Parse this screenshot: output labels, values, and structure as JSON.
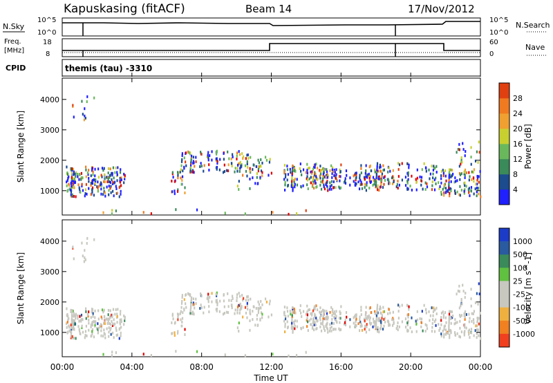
{
  "header": {
    "station": "Kapuskasing (fitACF)",
    "beam": "Beam 14",
    "date": "17/Nov/2012"
  },
  "top_panels": {
    "nsky_label": "N.Sky",
    "nsky_ticks": [
      "10^5",
      "10^0"
    ],
    "nsearch_ticks": [
      "10^5",
      "10^0"
    ],
    "nsearch_label": "N.Search",
    "freq_label_line1": "Freq.",
    "freq_label_line2": "[MHz]",
    "freq_ticks": [
      "18",
      "8"
    ],
    "nave_ticks": [
      "60",
      "0"
    ],
    "nave_label": "Nave",
    "cpid_label": "CPID",
    "cpid_text": "themis (tau) -3310"
  },
  "colors": {
    "power_scale": [
      "#2020ff",
      "#1c4b8e",
      "#3a8a5a",
      "#6ab85c",
      "#c8d030",
      "#f0a030",
      "#f07a20",
      "#e04010",
      "#e00000"
    ],
    "velocity_scale": [
      "#e00000",
      "#f04020",
      "#f08020",
      "#f0b040",
      "#c8c8c0",
      "#c8c8c0",
      "#60c040",
      "#3a8a5a",
      "#2a5aa0",
      "#1c3cc8"
    ]
  },
  "chart_data": [
    {
      "type": "heatmap",
      "name": "power",
      "ylabel": "Slant Range [km]",
      "y_ticks": [
        "1000",
        "2000",
        "3000",
        "4000"
      ],
      "ylim": [
        200,
        4700
      ],
      "xlim": [
        0,
        24
      ],
      "colorbar_label": "Power [dB]",
      "colorbar_ticks": [
        "4",
        "8",
        "12",
        "16",
        "20",
        "24",
        "28"
      ]
    },
    {
      "type": "heatmap",
      "name": "velocity",
      "ylabel": "Slant Range [km]",
      "y_ticks": [
        "1000",
        "2000",
        "3000",
        "4000"
      ],
      "ylim": [
        200,
        4700
      ],
      "xlim": [
        0,
        24
      ],
      "colorbar_label": "Velocity [m s^-1]",
      "colorbar_ticks": [
        "1000",
        "500",
        "100",
        "25",
        "-25",
        "-100",
        "-500",
        "-1000"
      ],
      "xlabel": "Time UT",
      "x_ticks": [
        "00:00",
        "04:00",
        "08:00",
        "12:00",
        "16:00",
        "20:00",
        "00:00"
      ]
    }
  ]
}
